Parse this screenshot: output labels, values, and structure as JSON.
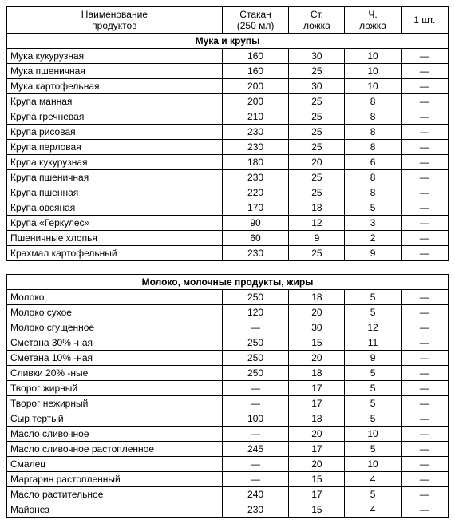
{
  "header": {
    "name_line1": "Наименование",
    "name_line2": "продуктов",
    "cup_line1": "Стакан",
    "cup_line2": "(250 мл)",
    "tbsp_line1": "Ст.",
    "tbsp_line2": "ложка",
    "tsp_line1": "Ч.",
    "tsp_line2": "ложка",
    "piece_line1": "1 шт."
  },
  "sections": [
    {
      "title": "Мука и крупы",
      "rows": [
        {
          "name": "Мука кукурузная",
          "cup": "160",
          "tbsp": "30",
          "tsp": "10",
          "piece": "—"
        },
        {
          "name": "Мука пшеничная",
          "cup": "160",
          "tbsp": "25",
          "tsp": "10",
          "piece": "—"
        },
        {
          "name": "Мука картофельная",
          "cup": "200",
          "tbsp": "30",
          "tsp": "10",
          "piece": "—"
        },
        {
          "name": "Крупа манная",
          "cup": "200",
          "tbsp": "25",
          "tsp": "8",
          "piece": "—"
        },
        {
          "name": "Крупа гречневая",
          "cup": "210",
          "tbsp": "25",
          "tsp": "8",
          "piece": "—"
        },
        {
          "name": "Крупа рисовая",
          "cup": "230",
          "tbsp": "25",
          "tsp": "8",
          "piece": "—"
        },
        {
          "name": "Крупа перловая",
          "cup": "230",
          "tbsp": "25",
          "tsp": "8",
          "piece": "—"
        },
        {
          "name": "Крупа кукурузная",
          "cup": "180",
          "tbsp": "20",
          "tsp": "6",
          "piece": "—"
        },
        {
          "name": "Крупа пшеничная",
          "cup": "230",
          "tbsp": "25",
          "tsp": "8",
          "piece": "—"
        },
        {
          "name": "Крупа пшенная",
          "cup": "220",
          "tbsp": "25",
          "tsp": "8",
          "piece": "—"
        },
        {
          "name": "Крупа овсяная",
          "cup": "170",
          "tbsp": "18",
          "tsp": "5",
          "piece": "—"
        },
        {
          "name": "Крупа «Геркулес»",
          "cup": "90",
          "tbsp": "12",
          "tsp": "3",
          "piece": "—"
        },
        {
          "name": "Пшеничные хлопья",
          "cup": "60",
          "tbsp": "9",
          "tsp": "2",
          "piece": "—"
        },
        {
          "name": "Крахмал картофельный",
          "cup": "230",
          "tbsp": "25",
          "tsp": "9",
          "piece": "—"
        }
      ]
    },
    {
      "title": "Молоко, молочные продукты, жиры",
      "rows": [
        {
          "name": "Молоко",
          "cup": "250",
          "tbsp": "18",
          "tsp": "5",
          "piece": "—"
        },
        {
          "name": "Молоко сухое",
          "cup": "120",
          "tbsp": "20",
          "tsp": "5",
          "piece": "—"
        },
        {
          "name": "Молоко сгущенное",
          "cup": "—",
          "tbsp": "30",
          "tsp": "12",
          "piece": "—"
        },
        {
          "name": "Сметана 30% -ная",
          "cup": "250",
          "tbsp": "15",
          "tsp": "11",
          "piece": "—"
        },
        {
          "name": "Сметана 10% -ная",
          "cup": "250",
          "tbsp": "20",
          "tsp": "9",
          "piece": "—"
        },
        {
          "name": "Сливки 20% -ные",
          "cup": "250",
          "tbsp": "18",
          "tsp": "5",
          "piece": "—"
        },
        {
          "name": "Творог жирный",
          "cup": "—",
          "tbsp": "17",
          "tsp": "5",
          "piece": "—"
        },
        {
          "name": "Творог нежирный",
          "cup": "—",
          "tbsp": "17",
          "tsp": "5",
          "piece": "—"
        },
        {
          "name": "Сыр тертый",
          "cup": "100",
          "tbsp": "18",
          "tsp": "5",
          "piece": "—"
        },
        {
          "name": "Масло сливочное",
          "cup": "—",
          "tbsp": "20",
          "tsp": "10",
          "piece": "—"
        },
        {
          "name": "Масло сливочное растопленное",
          "cup": "245",
          "tbsp": "17",
          "tsp": "5",
          "piece": "—"
        },
        {
          "name": "Смалец",
          "cup": "—",
          "tbsp": "20",
          "tsp": "10",
          "piece": "—"
        },
        {
          "name": "Маргарин растопленный",
          "cup": "—",
          "tbsp": "15",
          "tsp": "4",
          "piece": "—"
        },
        {
          "name": "Масло растительное",
          "cup": "240",
          "tbsp": "17",
          "tsp": "5",
          "piece": "—"
        },
        {
          "name": "Майонез",
          "cup": "230",
          "tbsp": "15",
          "tsp": "4",
          "piece": "—"
        }
      ]
    }
  ]
}
